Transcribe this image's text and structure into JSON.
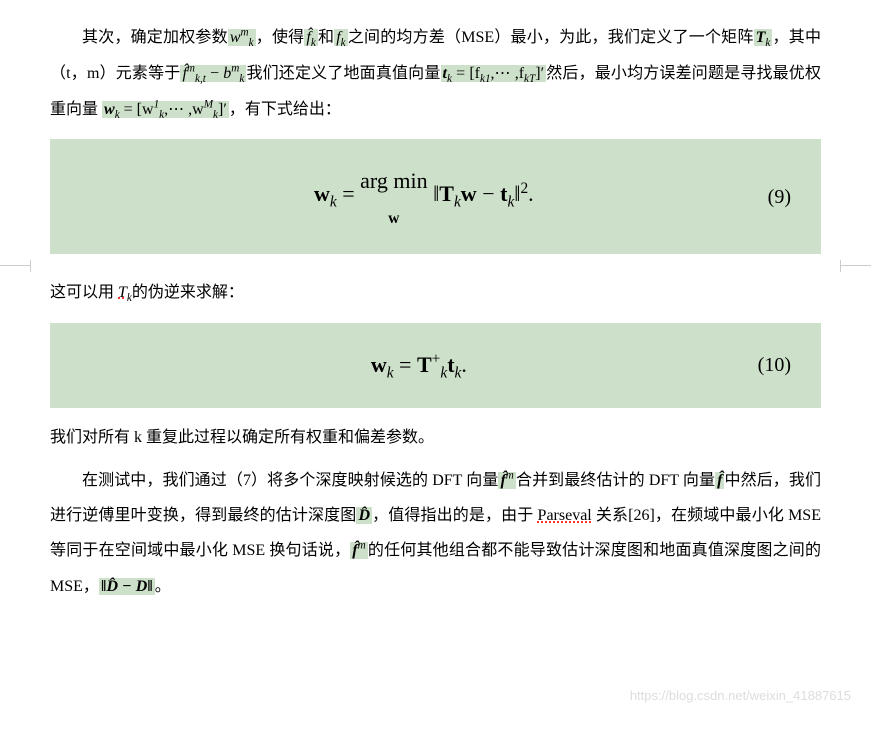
{
  "para1": {
    "t1": "其次，确定加权参数",
    "h1": "w",
    "h1_sup": "m",
    "h1_sub": "k",
    "t2": "，使得",
    "h2": "f̂",
    "h2_sub": "k",
    "t3": "和",
    "h3": "f",
    "h3_sub": "k",
    "t4": "之间的均方差（MSE）最小，为此，我们定义了一个矩阵",
    "h4": "T",
    "h4_sub": "k",
    "t5": "，其中（t，m）元素等于",
    "h5a": "f̂",
    "h5a_sup": "m",
    "h5a_sub": "k,t",
    "h5_minus": " − ",
    "h5b": "b",
    "h5b_sup": "m",
    "h5b_sub": "k",
    "t6": "我们还定义了地面真值向量",
    "h6": "t",
    "h6_sub": "k",
    "h6_eq": " = [f",
    "h6_sub2": "k1",
    "h6_mid": ",⋯ ,f",
    "h6_sub3": "kT",
    "h6_end": "]′",
    "t7": "然后，最小均方误差问题是寻找最优权重向量",
    "h7": "w",
    "h7_sub": "k",
    "h7_eq": " = [w",
    "h7_sup1": "1",
    "h7_sub1": "k",
    "h7_mid": ",⋯ ,w",
    "h7_sup2": "M",
    "h7_sub2": "k",
    "h7_end": "]′",
    "t8": "，有下式给出："
  },
  "eq9": {
    "lhs": "w",
    "lhs_sub": "k",
    "eq": " = ",
    "argmin_top": "arg min",
    "argmin_bottom": "w",
    "norm_open": " ‖",
    "T": "T",
    "T_sub": "k",
    "w": "w",
    "minus": " − ",
    "t": "t",
    "t_sub": "k",
    "norm_close": "‖",
    "sq": "2",
    "dot": ".",
    "num": "(9)"
  },
  "para2": {
    "t1": "这可以用 ",
    "T": "T",
    "T_sub": "k",
    "t2": "的伪逆来求解："
  },
  "eq10": {
    "lhs": "w",
    "lhs_sub": "k",
    "eq": " = ",
    "T": "T",
    "T_sup": "+",
    "T_sub": "k",
    "t": "t",
    "t_sub": "k",
    "dot": ".",
    "num": "(10)"
  },
  "para3": {
    "t1": "我们对所有 k 重复此过程以确定所有权重和偏差参数。"
  },
  "para4": {
    "t1": "在测试中，我们通过（7）将多个深度映射候选的 DFT 向量",
    "h1": "f̂",
    "h1_sup": "m",
    "t2": "合并到最终估计的 DFT 向量",
    "h2": "f̂",
    "t3": "中然后，我们进行逆傅里叶变换，得到最终的估计深度图",
    "h3": "D̂",
    "t4": "，值得指出的是，由于 ",
    "parseval": "Parseval",
    "t5": " 关系[26]，在频域中最小化 MSE 等同于在空间域中最小化 MSE 换句话说，",
    "h4": "f̂",
    "h4_sup": "m",
    "t6": "的任何其他组合都不能导致估计深度图和地面真值深度图之间的 MSE，",
    "h5": "‖D̂ − D‖",
    "t7": "。"
  },
  "watermark": "https://blog.csdn.net/weixin_41887615",
  "colors": {
    "highlight_bg": "#cde0c9",
    "text": "#000000",
    "bg": "#ffffff",
    "watermark": "#dddddd"
  }
}
